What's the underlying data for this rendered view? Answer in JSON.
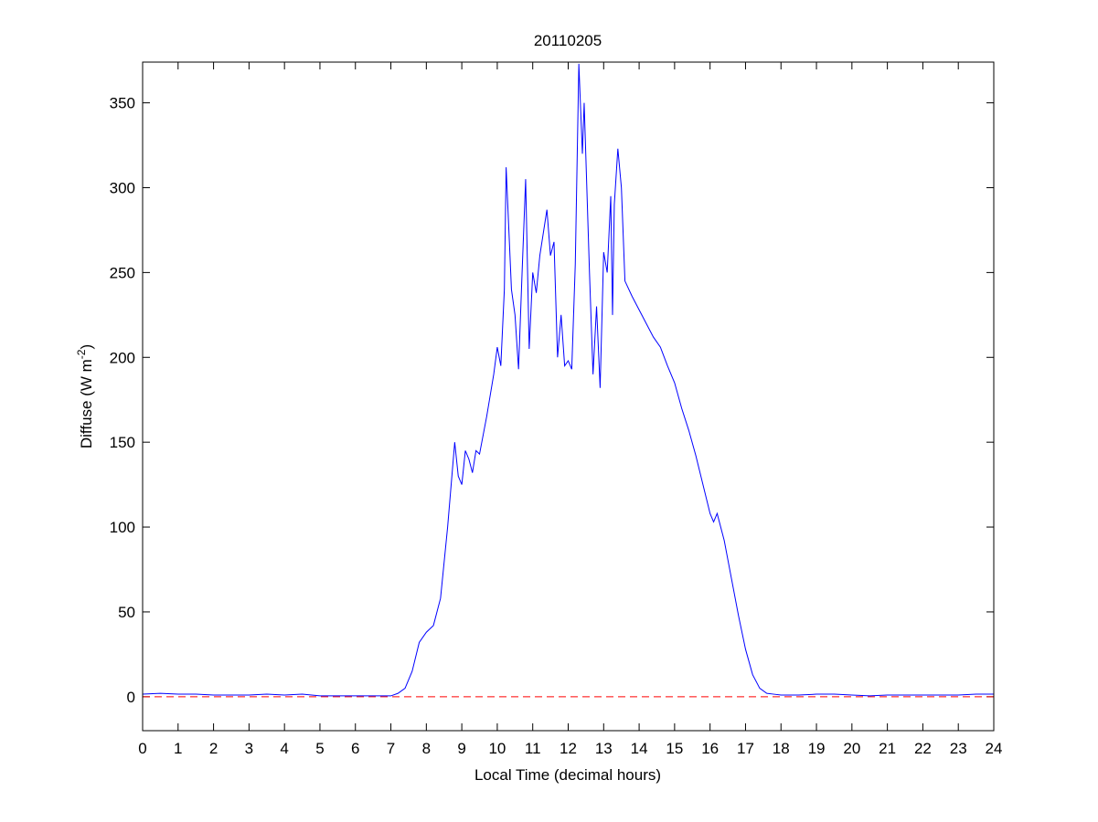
{
  "chart_data": {
    "type": "line",
    "title": "20110205",
    "x_label": "Local Time (decimal hours)",
    "y_label": [
      "Diffuse (W m",
      "-2",
      ")"
    ],
    "x": [
      0,
      0.5,
      1,
      1.5,
      2,
      2.5,
      3,
      3.5,
      4,
      4.5,
      5,
      5.5,
      6,
      6.5,
      7,
      7.2,
      7.4,
      7.6,
      7.8,
      8.0,
      8.2,
      8.4,
      8.6,
      8.8,
      8.9,
      9.0,
      9.1,
      9.2,
      9.3,
      9.4,
      9.5,
      9.7,
      9.9,
      10.0,
      10.1,
      10.2,
      10.25,
      10.4,
      10.5,
      10.6,
      10.7,
      10.8,
      10.9,
      11.0,
      11.1,
      11.2,
      11.4,
      11.5,
      11.6,
      11.7,
      11.8,
      11.9,
      12.0,
      12.1,
      12.2,
      12.3,
      12.4,
      12.45,
      12.6,
      12.7,
      12.8,
      12.9,
      13.0,
      13.1,
      13.2,
      13.25,
      13.3,
      13.4,
      13.5,
      13.6,
      13.8,
      14,
      14.2,
      14.4,
      14.6,
      14.8,
      15,
      15.2,
      15.4,
      15.6,
      15.8,
      16,
      16.1,
      16.2,
      16.4,
      16.6,
      16.8,
      17,
      17.2,
      17.4,
      17.6,
      17.8,
      18,
      18.5,
      19,
      19.5,
      20,
      20.5,
      21,
      22,
      23,
      23.5,
      24
    ],
    "series": [
      {
        "color": "#0000ff",
        "values": [
          1.5,
          2,
          1.5,
          1.5,
          1,
          1,
          1,
          1.5,
          1,
          1.5,
          0.5,
          0.5,
          0.5,
          0.5,
          0.5,
          2,
          5,
          15,
          32,
          38,
          42,
          58,
          100,
          150,
          130,
          125,
          145,
          140,
          132,
          145,
          143,
          165,
          190,
          206,
          195,
          240,
          312,
          240,
          225,
          193,
          250,
          305,
          205,
          250,
          238,
          260,
          287,
          260,
          268,
          200,
          225,
          195,
          198,
          193,
          255,
          373,
          320,
          350,
          250,
          190,
          230,
          182,
          262,
          250,
          295,
          225,
          290,
          323,
          300,
          245,
          236,
          228,
          220,
          212,
          206,
          195,
          185,
          170,
          157,
          142,
          125,
          108,
          103,
          108,
          92,
          70,
          48,
          28,
          13,
          5,
          2,
          1.5,
          1,
          1,
          1.5,
          1.5,
          1,
          0.5,
          1,
          1,
          1,
          1.5,
          1.5
        ]
      }
    ],
    "reference_line": {
      "y": 0,
      "color": "#ff0000"
    },
    "xlim": [
      0,
      24
    ],
    "ylim": [
      -20,
      374
    ],
    "xticks": [
      0,
      1,
      2,
      3,
      4,
      5,
      6,
      7,
      8,
      9,
      10,
      11,
      12,
      13,
      14,
      15,
      16,
      17,
      18,
      19,
      20,
      21,
      22,
      23,
      24
    ],
    "yticks": [
      0,
      50,
      100,
      150,
      200,
      250,
      300,
      350
    ]
  }
}
